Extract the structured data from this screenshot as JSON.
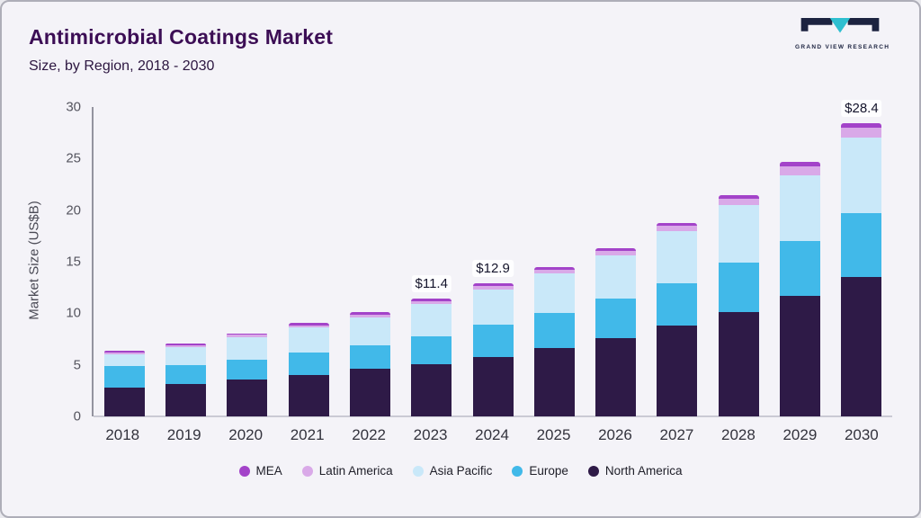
{
  "header": {
    "title": "Antimicrobial Coatings Market",
    "subtitle": "Size, by Region, 2018 - 2030"
  },
  "logo": {
    "name": "Grand View Research",
    "caption": "GRAND VIEW RESEARCH",
    "dark_color": "#1c2340",
    "teal_color": "#2ebfd0"
  },
  "chart_data": {
    "type": "bar",
    "stacked": true,
    "title": "Antimicrobial Coatings Market Size, by Region, 2018 - 2030",
    "xlabel": "",
    "ylabel": "Market Size (US$B)",
    "ylim": [
      0,
      30
    ],
    "yticks": [
      0,
      5,
      10,
      15,
      20,
      25,
      30
    ],
    "grid": false,
    "legend_position": "bottom",
    "categories": [
      "2018",
      "2019",
      "2020",
      "2021",
      "2022",
      "2023",
      "2024",
      "2025",
      "2026",
      "2027",
      "2028",
      "2029",
      "2030"
    ],
    "series": [
      {
        "name": "North America",
        "color": "#2e1a47",
        "values": [
          2.8,
          3.1,
          3.6,
          4.0,
          4.6,
          5.1,
          5.8,
          6.6,
          7.6,
          8.8,
          10.1,
          11.7,
          13.5
        ]
      },
      {
        "name": "Europe",
        "color": "#41b9e9",
        "values": [
          2.1,
          1.9,
          1.9,
          2.2,
          2.3,
          2.7,
          3.1,
          3.4,
          3.8,
          4.1,
          4.8,
          5.3,
          6.2
        ]
      },
      {
        "name": "Asia Pacific",
        "color": "#c9e8f9",
        "values": [
          1.1,
          1.7,
          2.2,
          2.4,
          2.7,
          3.1,
          3.4,
          3.9,
          4.2,
          5.1,
          5.6,
          6.4,
          7.3
        ]
      },
      {
        "name": "Latin America",
        "color": "#d9a9e8",
        "values": [
          0.18,
          0.2,
          0.2,
          0.25,
          0.3,
          0.3,
          0.35,
          0.35,
          0.45,
          0.45,
          0.6,
          0.85,
          1.0
        ]
      },
      {
        "name": "MEA",
        "color": "#a343c9",
        "values": [
          0.15,
          0.15,
          0.15,
          0.2,
          0.2,
          0.2,
          0.25,
          0.25,
          0.3,
          0.3,
          0.35,
          0.4,
          0.4
        ]
      }
    ],
    "annotations": [
      {
        "category": "2023",
        "text": "$11.4"
      },
      {
        "category": "2024",
        "text": "$12.9"
      },
      {
        "category": "2030",
        "text": "$28.4"
      }
    ],
    "legend_order": [
      "MEA",
      "Latin America",
      "Asia Pacific",
      "Europe",
      "North America"
    ]
  }
}
